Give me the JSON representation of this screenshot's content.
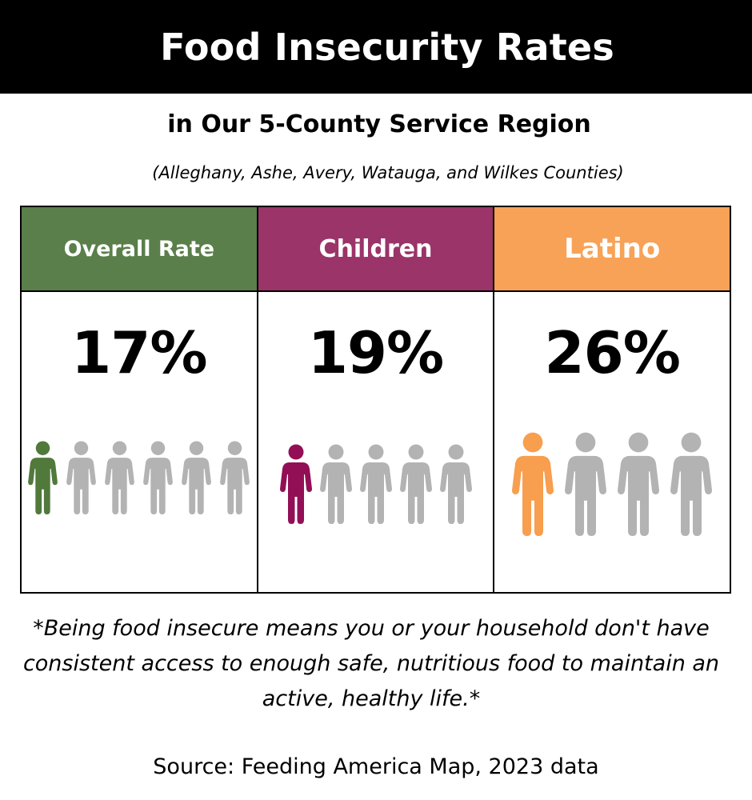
{
  "title": "Food Insecurity Rates",
  "subtitle": "in Our 5-County Service Region",
  "counties": "(Alleghany, Ashe, Avery, Watauga, and Wilkes Counties)",
  "colors": {
    "gray": "#b3b3b3",
    "overall_header": "#5a7f4a",
    "children_header": "#9b3468",
    "latino_header": "#f8a257",
    "overall_icon": "#51793b",
    "children_icon": "#930f55",
    "latino_icon": "#f89e4f"
  },
  "groups": [
    {
      "label": "Overall Rate",
      "value": "17%",
      "highlighted": 1,
      "total": 6,
      "icon": "person-icon"
    },
    {
      "label": "Children",
      "value": "19%",
      "highlighted": 1,
      "total": 5,
      "icon": "person-icon"
    },
    {
      "label": "Latino",
      "value": "26%",
      "highlighted": 1,
      "total": 4,
      "icon": "person-icon"
    }
  ],
  "note": "*Being food insecure means you or your household don't have consistent access to enough safe, nutritious food to maintain an active, healthy life.*",
  "source": "Source: Feeding America Map, 2023 data"
}
